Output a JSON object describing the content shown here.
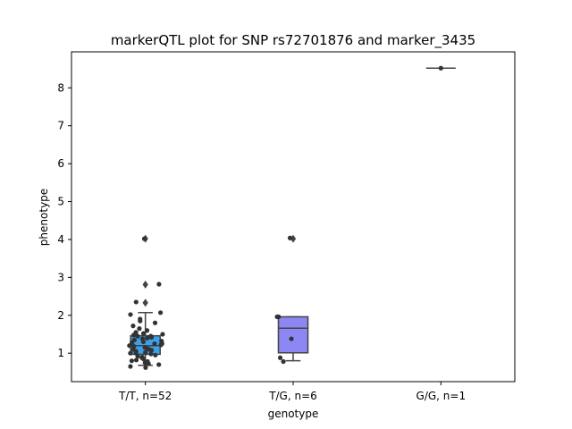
{
  "chart_data": {
    "type": "box",
    "title": "markerQTL plot for SNP rs72701876 and marker_3435",
    "xlabel": "genotype",
    "ylabel": "phenotype",
    "ylim": [
      0.25,
      8.95
    ],
    "yticks": [
      1,
      2,
      3,
      4,
      5,
      6,
      7,
      8
    ],
    "grid": false,
    "categories": [
      "T/T, n=52",
      "T/G, n=6",
      "G/G, n=1"
    ],
    "groups": [
      {
        "label": "T/T, n=52",
        "color": "#3aa0e8",
        "q1": 0.97,
        "median": 1.2,
        "q3": 1.46,
        "whisker_low": 0.68,
        "whisker_high": 2.07,
        "outliers": [
          2.33,
          2.81,
          4.02
        ],
        "points": [
          0.75,
          0.78,
          0.8,
          0.82,
          0.85,
          0.62,
          0.65,
          0.7,
          0.72,
          0.9,
          0.92,
          0.95,
          0.98,
          1.0,
          1.02,
          1.05,
          1.08,
          1.1,
          1.12,
          1.15,
          1.18,
          1.2,
          1.22,
          1.25,
          1.28,
          1.3,
          1.32,
          1.35,
          1.38,
          1.4,
          1.42,
          1.45,
          1.48,
          1.5,
          1.52,
          1.55,
          1.6,
          1.65,
          1.72,
          1.8,
          1.85,
          1.9,
          2.02,
          2.07,
          2.35,
          2.82,
          4.02,
          1.0,
          1.1,
          0.88,
          1.25,
          1.45
        ]
      },
      {
        "label": "T/G, n=6",
        "color": "#8d87f3",
        "q1": 1.01,
        "median": 1.66,
        "q3": 1.96,
        "whisker_low": 0.8,
        "whisker_high": 1.96,
        "outliers": [
          4.02
        ],
        "points": [
          0.88,
          0.78,
          1.38,
          1.96,
          1.96,
          4.04
        ]
      },
      {
        "label": "G/G, n=1",
        "color": "#e67be8",
        "q1": 8.52,
        "median": 8.52,
        "q3": 8.52,
        "whisker_low": 8.52,
        "whisker_high": 8.52,
        "outliers": [],
        "points": [
          8.52
        ]
      }
    ]
  }
}
